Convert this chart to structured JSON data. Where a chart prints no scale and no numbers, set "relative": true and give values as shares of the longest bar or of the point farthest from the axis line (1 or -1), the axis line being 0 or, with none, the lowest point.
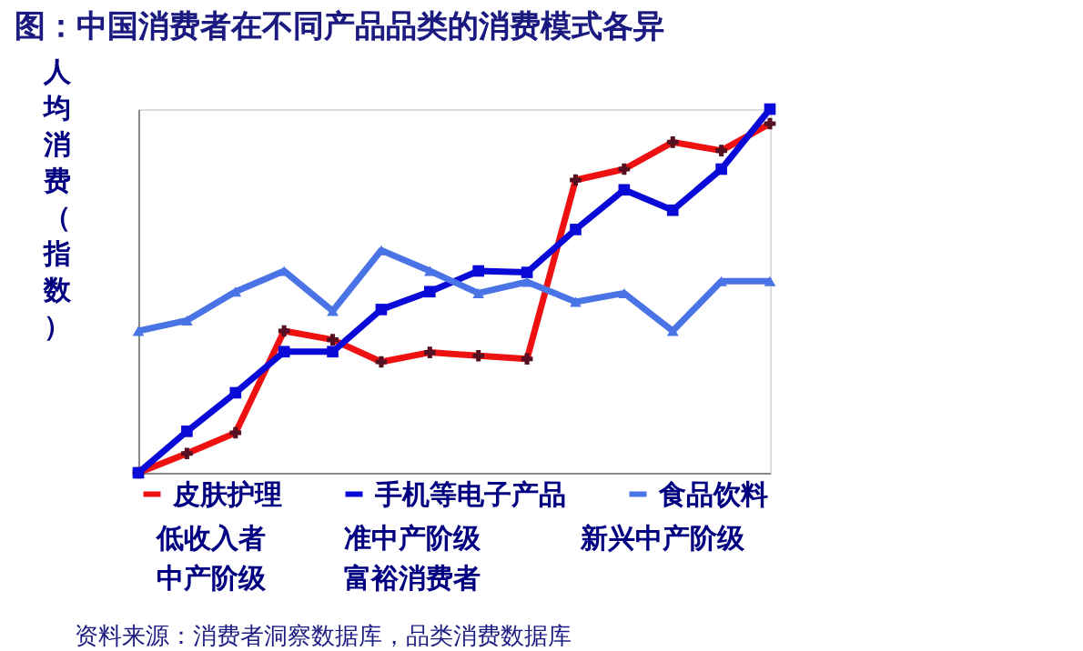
{
  "chart_data": {
    "type": "line",
    "title": "图：中国消费者在不同产品品类的消费模式各异",
    "ylabel": "人均消费（指数）",
    "relative": true,
    "categories": [
      null,
      null,
      null,
      null,
      null,
      null,
      null,
      null,
      null,
      null,
      null,
      null,
      null,
      null
    ],
    "series": [
      {
        "name": "皮肤护理",
        "color": "#ee1111",
        "marker": "cross",
        "values": [
          0,
          0.053,
          0.11,
          0.39,
          0.366,
          0.305,
          0.331,
          0.322,
          0.313,
          0.805,
          0.835,
          0.909,
          0.886,
          0.96
        ]
      },
      {
        "name": "手机等电子产品",
        "color": "#0a0ad8",
        "marker": "square",
        "values": [
          0,
          0.114,
          0.22,
          0.333,
          0.333,
          0.449,
          0.498,
          0.555,
          0.551,
          0.669,
          0.778,
          0.722,
          0.835,
          1
        ]
      },
      {
        "name": "食品饮料",
        "color": "#4a74e6",
        "marker": "triangle",
        "values": [
          0.39,
          0.419,
          0.498,
          0.555,
          0.445,
          0.612,
          0.555,
          0.494,
          0.525,
          0.47,
          0.494,
          0.39,
          0.527,
          0.527
        ]
      }
    ],
    "legend": "bottom",
    "grid": false,
    "line_style": "solid",
    "annotations": [
      "低收入者",
      "准中产阶级",
      "新兴中产阶级",
      "中产阶级",
      "富裕消费者",
      "资料来源：消费者洞察数据库，品类消费数据库"
    ]
  }
}
